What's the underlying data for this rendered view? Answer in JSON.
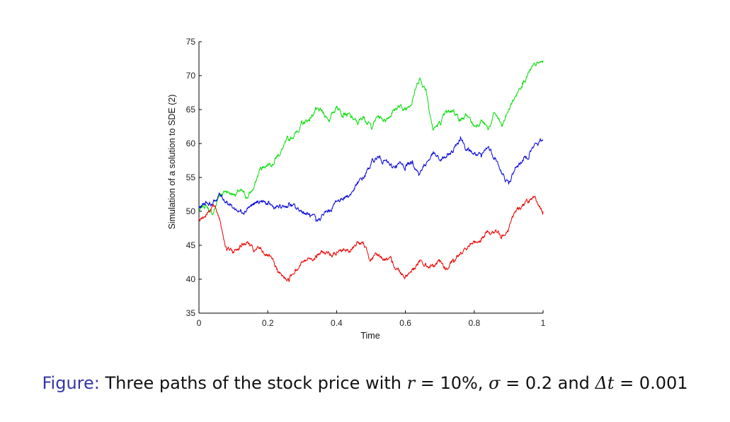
{
  "chart_data": {
    "type": "line",
    "xlabel": "Time",
    "ylabel": "Simulation of a solution to SDE (2)",
    "xlim": [
      0,
      1
    ],
    "ylim": [
      35,
      75
    ],
    "xticks": [
      "0",
      "0.2",
      "0.4",
      "0.6",
      "0.8",
      "1"
    ],
    "yticks": [
      "35",
      "40",
      "45",
      "50",
      "55",
      "60",
      "65",
      "70",
      "75"
    ],
    "grid": false,
    "series": [
      {
        "name": "path-green",
        "color": "#00dd00",
        "x": [
          0,
          0.02,
          0.04,
          0.06,
          0.08,
          0.1,
          0.12,
          0.14,
          0.16,
          0.18,
          0.2,
          0.22,
          0.24,
          0.26,
          0.28,
          0.3,
          0.32,
          0.34,
          0.36,
          0.38,
          0.4,
          0.42,
          0.44,
          0.46,
          0.48,
          0.5,
          0.52,
          0.54,
          0.56,
          0.58,
          0.6,
          0.62,
          0.64,
          0.66,
          0.68,
          0.7,
          0.72,
          0.74,
          0.76,
          0.78,
          0.8,
          0.82,
          0.84,
          0.86,
          0.88,
          0.9,
          0.92,
          0.94,
          0.96,
          0.98,
          1.0
        ],
        "values": [
          50,
          51,
          49.5,
          52.5,
          53,
          52.5,
          53,
          52,
          53.5,
          56.5,
          57,
          57.5,
          59,
          60.5,
          61.5,
          63,
          63.5,
          65,
          64.5,
          63.5,
          65.5,
          64.5,
          64,
          63,
          64,
          62.5,
          64,
          63.5,
          64.5,
          65.5,
          65,
          66.5,
          69.5,
          68,
          62,
          63,
          64.5,
          65,
          63.5,
          64,
          62.5,
          63.5,
          62,
          64.5,
          62.5,
          65,
          67,
          69,
          70.5,
          71.5,
          72
        ]
      },
      {
        "name": "path-blue",
        "color": "#0000dd",
        "x": [
          0,
          0.02,
          0.04,
          0.06,
          0.08,
          0.1,
          0.12,
          0.14,
          0.16,
          0.18,
          0.2,
          0.22,
          0.24,
          0.26,
          0.28,
          0.3,
          0.32,
          0.34,
          0.36,
          0.38,
          0.4,
          0.42,
          0.44,
          0.46,
          0.48,
          0.5,
          0.52,
          0.54,
          0.56,
          0.58,
          0.6,
          0.62,
          0.64,
          0.66,
          0.68,
          0.7,
          0.72,
          0.74,
          0.76,
          0.78,
          0.8,
          0.82,
          0.84,
          0.86,
          0.88,
          0.9,
          0.92,
          0.94,
          0.96,
          0.98,
          1.0
        ],
        "values": [
          50.5,
          51.5,
          51,
          52.5,
          51.5,
          50.5,
          50,
          50.5,
          51,
          51.5,
          51,
          50.5,
          50.5,
          51,
          50.5,
          50,
          49.5,
          48.5,
          49.5,
          50,
          51.5,
          52,
          52.5,
          54,
          55,
          57,
          58,
          57.5,
          56.5,
          57,
          56.5,
          57.5,
          55.5,
          57,
          58.5,
          57.5,
          58,
          59,
          61,
          59,
          58.5,
          58,
          59.5,
          58,
          55.5,
          54,
          56.5,
          57.5,
          58.5,
          60,
          60.5
        ]
      },
      {
        "name": "path-red",
        "color": "#ee0000",
        "x": [
          0,
          0.02,
          0.04,
          0.06,
          0.08,
          0.1,
          0.12,
          0.14,
          0.16,
          0.18,
          0.2,
          0.22,
          0.24,
          0.26,
          0.28,
          0.3,
          0.32,
          0.34,
          0.36,
          0.38,
          0.4,
          0.42,
          0.44,
          0.46,
          0.48,
          0.5,
          0.52,
          0.54,
          0.56,
          0.58,
          0.6,
          0.62,
          0.64,
          0.66,
          0.68,
          0.7,
          0.72,
          0.74,
          0.76,
          0.78,
          0.8,
          0.82,
          0.84,
          0.86,
          0.88,
          0.9,
          0.92,
          0.94,
          0.96,
          0.98,
          1.0
        ],
        "values": [
          49,
          49.5,
          51,
          49,
          44.5,
          44,
          45,
          45.5,
          44,
          44.5,
          43.5,
          42,
          40.5,
          40,
          41.5,
          42.5,
          43,
          43.5,
          44,
          43.5,
          44,
          44.5,
          44,
          45.5,
          45,
          43,
          43.5,
          43,
          42.5,
          41.5,
          40.5,
          41.5,
          42.5,
          42,
          42,
          42.5,
          41.5,
          42.5,
          44,
          44.5,
          45.5,
          46,
          47,
          47,
          46.5,
          47.5,
          50,
          51,
          51.5,
          51.5,
          50
        ]
      }
    ]
  },
  "caption": {
    "prefix": "Figure:",
    "text": "Three paths of the stock price with",
    "r_sym": "r",
    "r_eq": "= 10%,",
    "sigma_sym": "σ",
    "sigma_eq": "= 0.2 and",
    "dt_sym": "Δt",
    "dt_eq": "= 0.001"
  }
}
